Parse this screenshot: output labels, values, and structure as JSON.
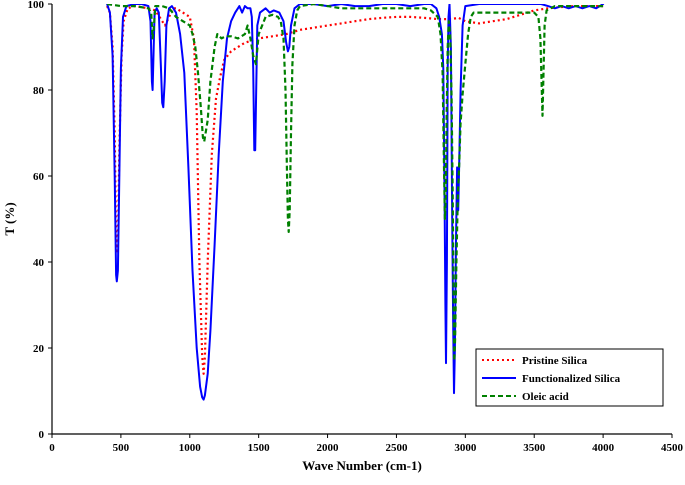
{
  "chart_data": {
    "type": "line",
    "title": "",
    "xlabel": "Wave Number (cm-1)",
    "ylabel": "T (%)",
    "xlim": [
      0,
      4500
    ],
    "ylim": [
      0,
      100
    ],
    "xticks": [
      0,
      500,
      1000,
      1500,
      2000,
      2500,
      3000,
      3500,
      4000,
      4500
    ],
    "yticks": [
      0,
      20,
      40,
      60,
      80,
      100
    ],
    "grid": false,
    "legend_position": "bottom-right",
    "series": [
      {
        "name": "Pristine Silica",
        "color": "#ff0000",
        "style": "dotted",
        "points": [
          [
            400,
            99.5
          ],
          [
            420,
            98
          ],
          [
            440,
            90
          ],
          [
            455,
            70
          ],
          [
            465,
            45
          ],
          [
            472,
            42
          ],
          [
            480,
            48
          ],
          [
            490,
            68
          ],
          [
            505,
            88
          ],
          [
            520,
            96
          ],
          [
            550,
            99
          ],
          [
            600,
            99.5
          ],
          [
            700,
            99
          ],
          [
            750,
            98.5
          ],
          [
            780,
            97
          ],
          [
            800,
            96
          ],
          [
            820,
            95
          ],
          [
            850,
            97
          ],
          [
            880,
            99
          ],
          [
            900,
            99
          ],
          [
            950,
            98
          ],
          [
            1000,
            97
          ],
          [
            1030,
            92
          ],
          [
            1050,
            75
          ],
          [
            1070,
            40
          ],
          [
            1090,
            18
          ],
          [
            1100,
            14
          ],
          [
            1110,
            18
          ],
          [
            1130,
            40
          ],
          [
            1160,
            65
          ],
          [
            1190,
            78
          ],
          [
            1220,
            83
          ],
          [
            1250,
            87
          ],
          [
            1300,
            89
          ],
          [
            1400,
            91
          ],
          [
            1500,
            92
          ],
          [
            1600,
            92.5
          ],
          [
            1700,
            93
          ],
          [
            1800,
            94
          ],
          [
            1900,
            94.5
          ],
          [
            2000,
            95
          ],
          [
            2100,
            95.5
          ],
          [
            2200,
            96
          ],
          [
            2300,
            96.5
          ],
          [
            2400,
            96.8
          ],
          [
            2500,
            97
          ],
          [
            2600,
            97
          ],
          [
            2700,
            96.8
          ],
          [
            2800,
            96.5
          ],
          [
            2900,
            96.5
          ],
          [
            2950,
            96.8
          ],
          [
            3000,
            96
          ],
          [
            3100,
            95.5
          ],
          [
            3200,
            96
          ],
          [
            3300,
            96.5
          ],
          [
            3400,
            97.5
          ],
          [
            3500,
            98.5
          ],
          [
            3600,
            99
          ],
          [
            3700,
            99.3
          ],
          [
            3800,
            99.5
          ],
          [
            3900,
            99.5
          ],
          [
            4000,
            99.5
          ]
        ]
      },
      {
        "name": "Functionalized Silica",
        "color": "#0000ff",
        "style": "solid",
        "points": [
          [
            400,
            100
          ],
          [
            420,
            98
          ],
          [
            440,
            88
          ],
          [
            455,
            60
          ],
          [
            465,
            37
          ],
          [
            470,
            35.5
          ],
          [
            478,
            38
          ],
          [
            488,
            58
          ],
          [
            500,
            85
          ],
          [
            515,
            97
          ],
          [
            540,
            99.5
          ],
          [
            600,
            100
          ],
          [
            650,
            100
          ],
          [
            700,
            99.5
          ],
          [
            715,
            96
          ],
          [
            725,
            82
          ],
          [
            730,
            80
          ],
          [
            738,
            90
          ],
          [
            745,
            98
          ],
          [
            760,
            99
          ],
          [
            775,
            98
          ],
          [
            790,
            86
          ],
          [
            800,
            77
          ],
          [
            808,
            76
          ],
          [
            818,
            82
          ],
          [
            830,
            95
          ],
          [
            850,
            99
          ],
          [
            870,
            99.5
          ],
          [
            900,
            98
          ],
          [
            930,
            93
          ],
          [
            960,
            84
          ],
          [
            990,
            62
          ],
          [
            1020,
            38
          ],
          [
            1050,
            20
          ],
          [
            1075,
            11
          ],
          [
            1090,
            8.5
          ],
          [
            1100,
            8
          ],
          [
            1110,
            9
          ],
          [
            1130,
            14
          ],
          [
            1150,
            24
          ],
          [
            1180,
            44
          ],
          [
            1210,
            65
          ],
          [
            1240,
            82
          ],
          [
            1270,
            92
          ],
          [
            1300,
            96
          ],
          [
            1330,
            98
          ],
          [
            1360,
            99.5
          ],
          [
            1380,
            98
          ],
          [
            1400,
            99.5
          ],
          [
            1420,
            99
          ],
          [
            1440,
            99
          ],
          [
            1450,
            97
          ],
          [
            1460,
            85
          ],
          [
            1468,
            66
          ],
          [
            1475,
            66
          ],
          [
            1482,
            80
          ],
          [
            1490,
            95
          ],
          [
            1510,
            98
          ],
          [
            1550,
            99
          ],
          [
            1580,
            98
          ],
          [
            1610,
            98.5
          ],
          [
            1650,
            98
          ],
          [
            1680,
            96
          ],
          [
            1700,
            91
          ],
          [
            1712,
            89
          ],
          [
            1722,
            90
          ],
          [
            1735,
            95
          ],
          [
            1760,
            99
          ],
          [
            1800,
            100
          ],
          [
            1900,
            100
          ],
          [
            2000,
            99.5
          ],
          [
            2100,
            100
          ],
          [
            2200,
            99.5
          ],
          [
            2300,
            99.5
          ],
          [
            2400,
            100
          ],
          [
            2500,
            100
          ],
          [
            2600,
            99.5
          ],
          [
            2700,
            100
          ],
          [
            2750,
            100
          ],
          [
            2790,
            99
          ],
          [
            2810,
            97
          ],
          [
            2830,
            93
          ],
          [
            2840,
            85
          ],
          [
            2848,
            60
          ],
          [
            2855,
            30
          ],
          [
            2860,
            16.5
          ],
          [
            2866,
            40
          ],
          [
            2872,
            85
          ],
          [
            2878,
            97
          ],
          [
            2885,
            100
          ],
          [
            2895,
            90
          ],
          [
            2905,
            50
          ],
          [
            2912,
            25
          ],
          [
            2918,
            9.5
          ],
          [
            2924,
            20
          ],
          [
            2932,
            45
          ],
          [
            2940,
            62
          ],
          [
            2948,
            52
          ],
          [
            2956,
            64
          ],
          [
            2966,
            80
          ],
          [
            2980,
            95
          ],
          [
            3000,
            99.5
          ],
          [
            3100,
            100
          ],
          [
            3200,
            100
          ],
          [
            3300,
            100
          ],
          [
            3400,
            100
          ],
          [
            3500,
            100
          ],
          [
            3550,
            100
          ],
          [
            3600,
            99.5
          ],
          [
            3650,
            99
          ],
          [
            3700,
            99.5
          ],
          [
            3750,
            99
          ],
          [
            3800,
            99.5
          ],
          [
            3850,
            99
          ],
          [
            3900,
            99.5
          ],
          [
            3950,
            99
          ],
          [
            4000,
            100
          ]
        ]
      },
      {
        "name": "Oleic acid",
        "color": "#008000",
        "style": "dashed",
        "points": [
          [
            400,
            100
          ],
          [
            500,
            99.5
          ],
          [
            600,
            99.5
          ],
          [
            700,
            99
          ],
          [
            720,
            98
          ],
          [
            730,
            92
          ],
          [
            740,
            95
          ],
          [
            750,
            99.5
          ],
          [
            800,
            99.5
          ],
          [
            850,
            99
          ],
          [
            900,
            97
          ],
          [
            950,
            96
          ],
          [
            1000,
            95
          ],
          [
            1020,
            93
          ],
          [
            1040,
            90
          ],
          [
            1060,
            84
          ],
          [
            1080,
            76
          ],
          [
            1095,
            69
          ],
          [
            1105,
            68
          ],
          [
            1115,
            70
          ],
          [
            1130,
            73
          ],
          [
            1150,
            82
          ],
          [
            1180,
            90
          ],
          [
            1200,
            93
          ],
          [
            1230,
            92
          ],
          [
            1260,
            92.5
          ],
          [
            1300,
            92.5
          ],
          [
            1350,
            92
          ],
          [
            1400,
            93
          ],
          [
            1420,
            95
          ],
          [
            1440,
            92
          ],
          [
            1460,
            88
          ],
          [
            1480,
            86
          ],
          [
            1500,
            93
          ],
          [
            1550,
            97
          ],
          [
            1600,
            97.5
          ],
          [
            1640,
            97
          ],
          [
            1660,
            96
          ],
          [
            1680,
            92
          ],
          [
            1695,
            80
          ],
          [
            1705,
            62
          ],
          [
            1712,
            50
          ],
          [
            1718,
            47
          ],
          [
            1725,
            52
          ],
          [
            1735,
            70
          ],
          [
            1745,
            86
          ],
          [
            1760,
            95
          ],
          [
            1780,
            98.5
          ],
          [
            1800,
            99.5
          ],
          [
            1900,
            100
          ],
          [
            2000,
            99.5
          ],
          [
            2100,
            99
          ],
          [
            2200,
            99
          ],
          [
            2300,
            99
          ],
          [
            2400,
            99
          ],
          [
            2500,
            99
          ],
          [
            2600,
            99
          ],
          [
            2700,
            99
          ],
          [
            2750,
            98.5
          ],
          [
            2800,
            97
          ],
          [
            2820,
            93
          ],
          [
            2835,
            84
          ],
          [
            2845,
            62
          ],
          [
            2852,
            50
          ],
          [
            2858,
            55
          ],
          [
            2865,
            75
          ],
          [
            2872,
            90
          ],
          [
            2880,
            96
          ],
          [
            2890,
            93
          ],
          [
            2900,
            78
          ],
          [
            2908,
            55
          ],
          [
            2915,
            30
          ],
          [
            2920,
            17
          ],
          [
            2926,
            22
          ],
          [
            2935,
            40
          ],
          [
            2945,
            55
          ],
          [
            2955,
            62
          ],
          [
            2965,
            72
          ],
          [
            2980,
            79
          ],
          [
            3000,
            86
          ],
          [
            3020,
            93
          ],
          [
            3040,
            97
          ],
          [
            3060,
            98
          ],
          [
            3100,
            98
          ],
          [
            3200,
            98
          ],
          [
            3300,
            98
          ],
          [
            3400,
            98
          ],
          [
            3500,
            98
          ],
          [
            3530,
            97
          ],
          [
            3545,
            92
          ],
          [
            3555,
            80
          ],
          [
            3560,
            74
          ],
          [
            3566,
            82
          ],
          [
            3575,
            95
          ],
          [
            3590,
            98.5
          ],
          [
            3650,
            99.5
          ],
          [
            3700,
            99.5
          ],
          [
            3800,
            99.5
          ],
          [
            3900,
            99.5
          ],
          [
            4000,
            99.5
          ]
        ]
      }
    ]
  }
}
